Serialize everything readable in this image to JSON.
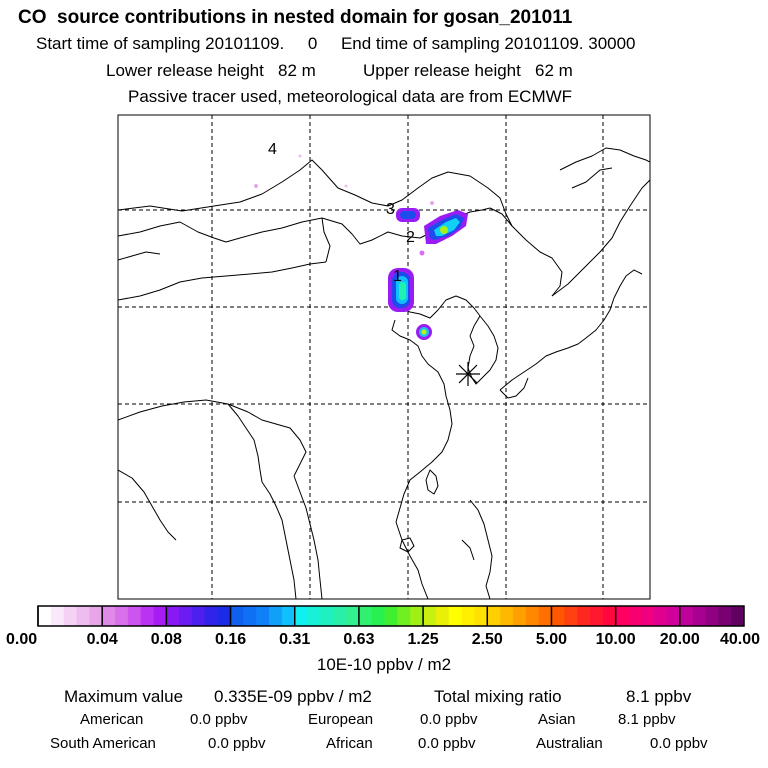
{
  "header": {
    "title": "CO  source contributions in nested domain for gosan_201011",
    "sampling_start_label": "Start time of sampling",
    "sampling_start_value": "20101109.     0",
    "sampling_end_label": "End time of sampling",
    "sampling_end_value": "20101109. 30000",
    "lower_release_label": "Lower release height",
    "lower_release_value": "82 m",
    "upper_release_label": "Upper release height",
    "upper_release_value": "62 m",
    "note": "Passive tracer used, meteorological data are from ECMWF"
  },
  "map": {
    "region_labels": [
      "1",
      "2",
      "3",
      "4"
    ],
    "receptor_marker": "receptor-asterisk",
    "colors": {
      "frame": "#000000",
      "coast": "#000000",
      "grid": "#000000"
    }
  },
  "legend": {
    "ticks": [
      "0.00",
      "0.04",
      "0.08",
      "0.16",
      "0.31",
      "0.63",
      "1.25",
      "2.50",
      "5.00",
      "10.00",
      "20.00",
      "40.00"
    ],
    "colors": [
      [
        "#ffffff",
        "#fbe8fb",
        "#f5d2f5",
        "#efbcef",
        "#e8a6e8"
      ],
      [
        "#e08ae8",
        "#d870ec",
        "#cc55f0",
        "#bb33f2",
        "#a81cf4"
      ],
      [
        "#8818f4",
        "#6a1cf2",
        "#4c20ee",
        "#3024ea",
        "#1c2ce6"
      ],
      [
        "#1060f0",
        "#1070f4",
        "#1080f8",
        "#10a0fa",
        "#10c0fc"
      ],
      [
        "#10f0f0",
        "#18f0d8",
        "#20f0c0",
        "#28f0a8",
        "#30f090"
      ],
      [
        "#30f070",
        "#28f050",
        "#40f030",
        "#70f020",
        "#a0f018"
      ],
      [
        "#c8f010",
        "#e8f008",
        "#ffff00",
        "#fff000",
        "#ffe000"
      ],
      [
        "#ffd000",
        "#ffb800",
        "#ffa000",
        "#ff8800",
        "#ff7000"
      ],
      [
        "#ff5800",
        "#ff4010",
        "#ff2820",
        "#ff1830",
        "#ff0840"
      ],
      [
        "#ff0060",
        "#f80070",
        "#f00080",
        "#e00090",
        "#d0009a"
      ],
      [
        "#c0009a",
        "#a80090",
        "#900080",
        "#780070",
        "#600060"
      ]
    ],
    "unit": "10E-10 ppbv / m2"
  },
  "stats": {
    "max_label": "Maximum value",
    "max_value": "0.335E-09 ppbv / m2",
    "total_label": "Total mixing ratio",
    "total_value": "8.1 ppbv",
    "regions": [
      {
        "name": "American",
        "value": "0.0 ppbv"
      },
      {
        "name": "European",
        "value": "0.0 ppbv"
      },
      {
        "name": "Asian",
        "value": "8.1 ppbv"
      },
      {
        "name": "South American",
        "value": "0.0 ppbv"
      },
      {
        "name": "African",
        "value": "0.0 ppbv"
      },
      {
        "name": "Australian",
        "value": "0.0 ppbv"
      }
    ]
  }
}
